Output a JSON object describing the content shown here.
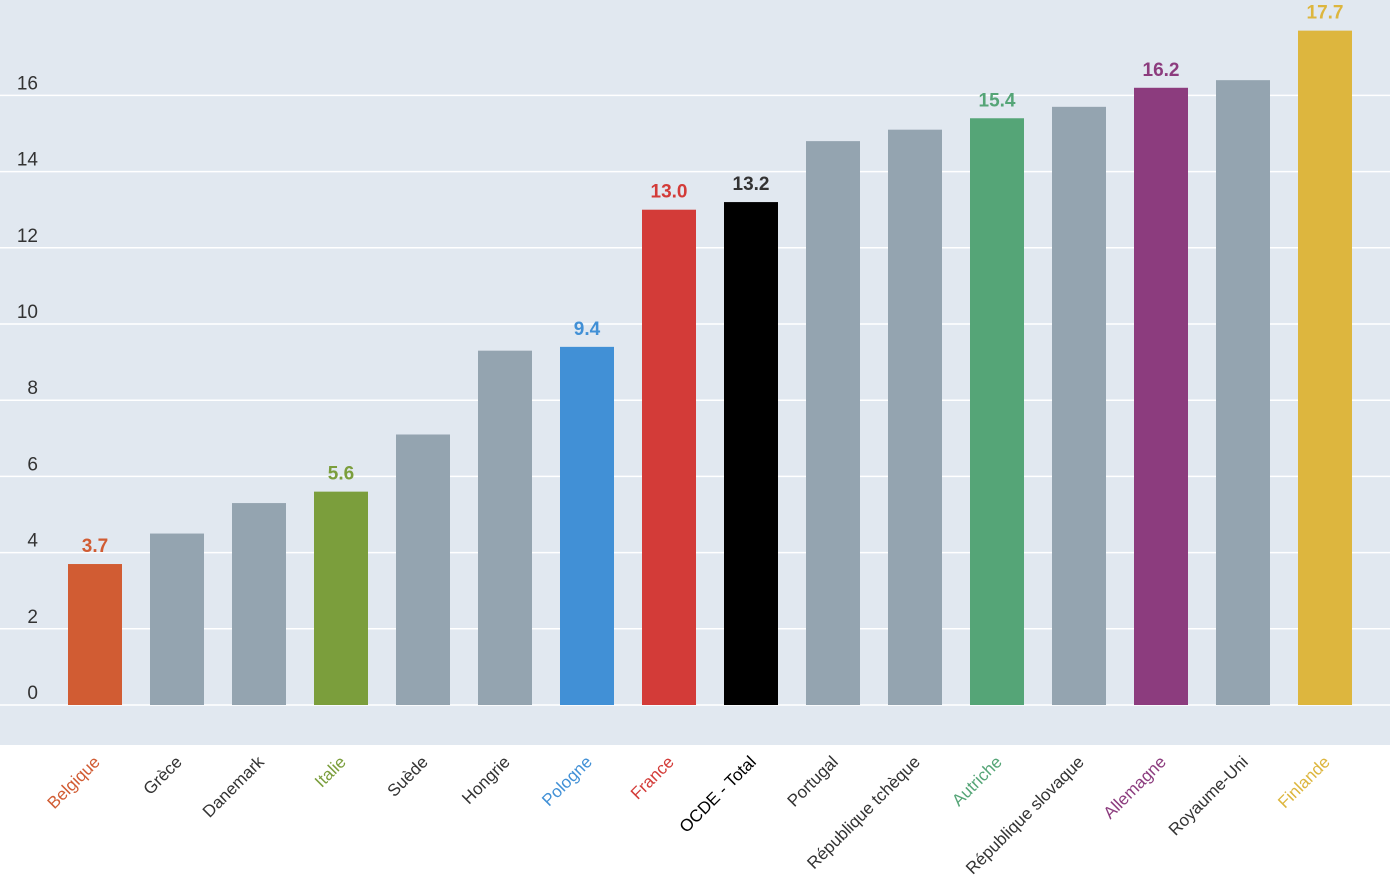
{
  "chart_data": {
    "type": "bar",
    "title": "",
    "xlabel": "",
    "ylabel": "",
    "ylim": [
      -1,
      18
    ],
    "yticks": [
      0,
      2,
      4,
      6,
      8,
      10,
      12,
      14,
      16
    ],
    "grid": true,
    "colors": {
      "background": "#e1e8f0",
      "gridline": "#ffffff",
      "default_bar": "#94a4b0",
      "default_label": "#333333"
    },
    "bars": [
      {
        "category": "Belgique",
        "value": 3.7,
        "label": "3.7",
        "color": "#d15c33",
        "label_color": "#d15c33"
      },
      {
        "category": "Grèce",
        "value": 4.5,
        "color": "#94a4b0",
        "label_color": "#333333"
      },
      {
        "category": "Danemark",
        "value": 5.3,
        "color": "#94a4b0",
        "label_color": "#333333"
      },
      {
        "category": "Italie",
        "value": 5.6,
        "label": "5.6",
        "color": "#7b9e3c",
        "label_color": "#7b9e3c"
      },
      {
        "category": "Suède",
        "value": 7.1,
        "color": "#94a4b0",
        "label_color": "#333333"
      },
      {
        "category": "Hongrie",
        "value": 9.3,
        "color": "#94a4b0",
        "label_color": "#333333"
      },
      {
        "category": "Pologne",
        "value": 9.4,
        "label": "9.4",
        "color": "#4190d6",
        "label_color": "#4190d6"
      },
      {
        "category": "France",
        "value": 13.0,
        "label": "13.0",
        "color": "#d33b38",
        "label_color": "#d33b38"
      },
      {
        "category": "OCDE - Total",
        "value": 13.2,
        "label": "13.2",
        "color": "#000000",
        "label_color": "#000000",
        "value_label_color": "#333333"
      },
      {
        "category": "Portugal",
        "value": 14.8,
        "color": "#94a4b0",
        "label_color": "#333333"
      },
      {
        "category": "République tchèque",
        "value": 15.1,
        "color": "#94a4b0",
        "label_color": "#333333"
      },
      {
        "category": "Autriche",
        "value": 15.4,
        "label": "15.4",
        "color": "#55a577",
        "label_color": "#55a577"
      },
      {
        "category": "République slovaque",
        "value": 15.7,
        "color": "#94a4b0",
        "label_color": "#333333"
      },
      {
        "category": "Allemagne",
        "value": 16.2,
        "label": "16.2",
        "color": "#8c3c7e",
        "label_color": "#8c3c7e"
      },
      {
        "category": "Royaume-Uni",
        "value": 16.4,
        "color": "#94a4b0",
        "label_color": "#333333"
      },
      {
        "category": "Finlande",
        "value": 17.7,
        "label": "17.7",
        "color": "#ddb63e",
        "label_color": "#ddb63e"
      }
    ]
  }
}
